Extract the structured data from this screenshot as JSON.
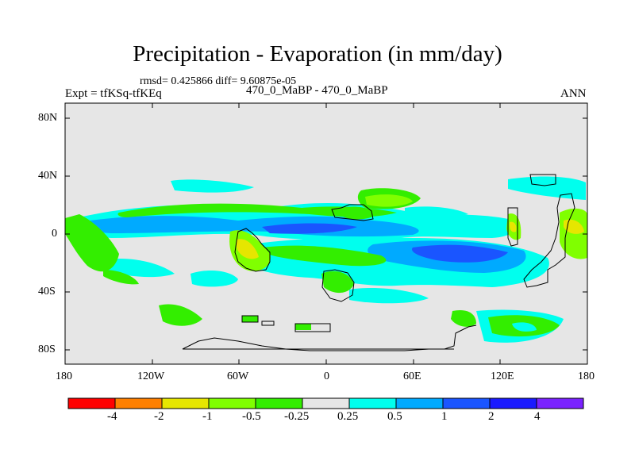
{
  "title": "Precipitation - Evaporation (in mm/day)",
  "stats": "rmsd= 0.425866 diff= 9.60875e-05",
  "left_label": "Expt = tfKSq-tfKEq",
  "center_label": "470_0_MaBP - 470_0_MaBP",
  "right_label": "ANN",
  "colors": {
    "background_field": "#e6e6e6",
    "coastline": "#000000",
    "bins": [
      "#ff0000",
      "#ff8000",
      "#e6e600",
      "#80ff00",
      "#33ee00",
      "#e6e6e6",
      "#00ffee",
      "#00aaff",
      "#1a55ff",
      "#1a1aff",
      "#7a22ff"
    ]
  },
  "y_axis": {
    "labels": [
      "80N",
      "40N",
      "0",
      "40S",
      "80S"
    ]
  },
  "x_axis": {
    "labels": [
      "180",
      "120W",
      "60W",
      "0",
      "60E",
      "120E",
      "180"
    ]
  },
  "colorbar": {
    "labels": [
      "-4",
      "-2",
      "-1",
      "-0.5",
      "-0.25",
      "0.25",
      "0.5",
      "1",
      "2",
      "4"
    ]
  }
}
